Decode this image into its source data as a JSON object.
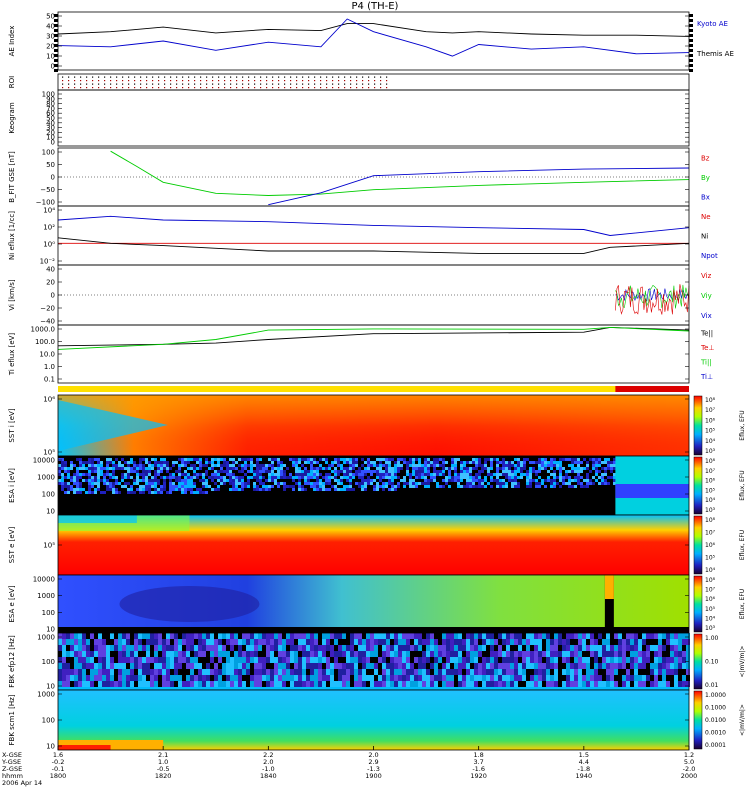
{
  "title": "P4 (TH-E)",
  "colors": {
    "kyoto": "#000000",
    "themis": "#0000cc",
    "red": "#dd0000",
    "green": "#00cc00",
    "blue": "#0000cc",
    "black": "#000000"
  },
  "chart_data": [
    {
      "type": "line",
      "panel": "ae",
      "ylabel": "AE Index",
      "ylim": [
        0,
        50
      ],
      "yticks": [
        "50",
        "40",
        "30",
        "20",
        "10",
        "0"
      ],
      "legend": [
        "Kyoto AE",
        "Themis AE"
      ],
      "x": [
        1800,
        1810,
        1820,
        1830,
        1840,
        1850,
        1855,
        1900,
        1910,
        1915,
        1920,
        1930,
        1940,
        1950,
        2000
      ],
      "series": [
        {
          "name": "Kyoto AE",
          "values": [
            31,
            33,
            37,
            32,
            35,
            34,
            40,
            40,
            33,
            32,
            33,
            31,
            30,
            30,
            29
          ]
        },
        {
          "name": "Themis AE",
          "values": [
            21,
            20,
            25,
            17,
            24,
            20,
            44,
            33,
            20,
            12,
            22,
            18,
            20,
            14,
            15
          ]
        }
      ]
    },
    {
      "type": "heatmap",
      "panel": "roi",
      "ylabel": "ROI"
    },
    {
      "type": "heatmap",
      "panel": "keogram",
      "ylabel": "Keogram",
      "yticks": [
        "100",
        "90",
        "80",
        "70",
        "60",
        "50",
        "40",
        "30",
        "20",
        "10",
        "0"
      ]
    },
    {
      "type": "line",
      "panel": "bfield",
      "ylabel": "B_FIT GSE [nT]",
      "ylim": [
        -100,
        100
      ],
      "yticks": [
        "100",
        "50",
        "0",
        "−50",
        "−100"
      ],
      "legend": [
        "Bz",
        "By",
        "Bx"
      ],
      "x": [
        1810,
        1815,
        1820,
        1830,
        1840,
        1850,
        1900,
        1920,
        1940,
        2000
      ],
      "series": [
        {
          "name": "By",
          "values": [
            98,
            40,
            -20,
            -62,
            -70,
            -65,
            -48,
            -32,
            -20,
            -10
          ]
        },
        {
          "name": "Bx",
          "values": [
            null,
            null,
            null,
            null,
            -105,
            -60,
            5,
            20,
            30,
            34
          ]
        }
      ]
    },
    {
      "type": "line",
      "panel": "density",
      "ylabel": "Ni eflux [1/cc]",
      "yscale": "log",
      "yticks": [
        "10⁴",
        "10²",
        "10⁰",
        "10⁻²"
      ],
      "legend": [
        "Ne",
        "Ni",
        "Npot"
      ],
      "x": [
        1800,
        1810,
        1820,
        1840,
        1900,
        1920,
        1940,
        1945,
        2000
      ],
      "series": [
        {
          "name": "Ni",
          "values": [
            1000,
            3000,
            1000,
            600,
            200,
            100,
            60,
            10,
            100
          ]
        },
        {
          "name": "Npot",
          "values": [
            5,
            1,
            0.5,
            0.1,
            0.1,
            0.05,
            0.05,
            0.3,
            1
          ]
        },
        {
          "name": "Ne",
          "values": [
            1,
            1,
            1,
            1,
            1,
            1,
            1,
            1,
            1
          ]
        }
      ]
    },
    {
      "type": "line",
      "panel": "velocity",
      "ylabel": "Vi [km/s]",
      "ylim": [
        -50,
        50
      ],
      "yticks": [
        "40",
        "20",
        "0",
        "−20",
        "−40"
      ],
      "legend": [
        "Viz",
        "Viy",
        "Vix"
      ]
    },
    {
      "type": "line",
      "panel": "temperature",
      "ylabel": "Ti eflux [eV]",
      "yscale": "log",
      "yticks": [
        "1000.0",
        "100.0",
        "10.0",
        "1.0",
        "0.1"
      ],
      "legend": [
        "Te||",
        "Te⊥",
        "Ti||",
        "Ti⊥"
      ],
      "x": [
        1800,
        1820,
        1830,
        1840,
        1900,
        1940,
        1945,
        2000
      ],
      "series": [
        {
          "name": "Ti||",
          "values": [
            30,
            80,
            200,
            1200,
            1500,
            1400,
            2000,
            1000
          ]
        },
        {
          "name": "Te||",
          "values": [
            60,
            80,
            100,
            200,
            600,
            800,
            2000,
            1200
          ]
        }
      ]
    },
    {
      "type": "heatmap",
      "panel": "sst_i",
      "ylabel": "SST i [eV]",
      "yticks": [
        "10⁶",
        "10⁵"
      ],
      "colorbar": {
        "label": "Eflux, EFU",
        "ticks": [
          "10⁸",
          "10⁷",
          "10⁶",
          "10⁵",
          "10⁴",
          "10³"
        ]
      }
    },
    {
      "type": "heatmap",
      "panel": "esa_i",
      "ylabel": "ESA i [eV]",
      "yticks": [
        "10000",
        "1000",
        "100",
        "10"
      ],
      "colorbar": {
        "label": "Eflux, EFU",
        "ticks": [
          "10⁸",
          "10⁷",
          "10⁶",
          "10⁵",
          "10⁴",
          "10³"
        ]
      }
    },
    {
      "type": "heatmap",
      "panel": "sst_e",
      "ylabel": "SST e [eV]",
      "yticks": [
        "10⁵"
      ],
      "colorbar": {
        "label": "Eflux, EFU",
        "ticks": [
          "10⁸",
          "10⁷",
          "10⁶",
          "10⁵",
          "10⁴"
        ]
      }
    },
    {
      "type": "heatmap",
      "panel": "esa_e",
      "ylabel": "ESA e [eV]",
      "yticks": [
        "10000",
        "1000",
        "100",
        "10"
      ],
      "colorbar": {
        "label": "Eflux, EFU",
        "ticks": [
          "10⁸",
          "10⁷",
          "10⁶",
          "10⁵",
          "10⁴",
          "10³"
        ]
      }
    },
    {
      "type": "heatmap",
      "panel": "fbk_e",
      "ylabel": "FBK efp12 [Hz]",
      "yticks": [
        "1000",
        "100",
        "10"
      ],
      "colorbar": {
        "label": "<|mV/m|>",
        "ticks": [
          "1.00",
          "0.10",
          "0.01"
        ]
      }
    },
    {
      "type": "heatmap",
      "panel": "fbk_b",
      "ylabel": "FBK scm1 [Hz]",
      "yticks": [
        "1000",
        "100",
        "10"
      ],
      "colorbar": {
        "label": "<|mV/m|>",
        "ticks": [
          "1.0000",
          "0.1000",
          "0.0100",
          "0.0010",
          "0.0001"
        ]
      }
    }
  ],
  "xaxis": {
    "row_labels": [
      "X-GSE",
      "Y-GSE",
      "Z-GSE",
      "hhmm",
      "2006 Apr 14"
    ],
    "ticks": [
      {
        "x": 1800,
        "vals": [
          "1.6",
          "-0.2",
          "-0.1",
          "1800"
        ]
      },
      {
        "x": 1820,
        "vals": [
          "2.1",
          "1.0",
          "-0.5",
          "1820"
        ]
      },
      {
        "x": 1840,
        "vals": [
          "2.2",
          "2.0",
          "-1.0",
          "1840"
        ]
      },
      {
        "x": 1900,
        "vals": [
          "2.0",
          "2.9",
          "-1.3",
          "1900"
        ]
      },
      {
        "x": 1920,
        "vals": [
          "1.8",
          "3.7",
          "-1.6",
          "1920"
        ]
      },
      {
        "x": 1940,
        "vals": [
          "1.5",
          "4.4",
          "-1.8",
          "1940"
        ]
      },
      {
        "x": 2000,
        "vals": [
          "1.2",
          "5.0",
          "-2.0",
          "2000"
        ]
      }
    ]
  }
}
